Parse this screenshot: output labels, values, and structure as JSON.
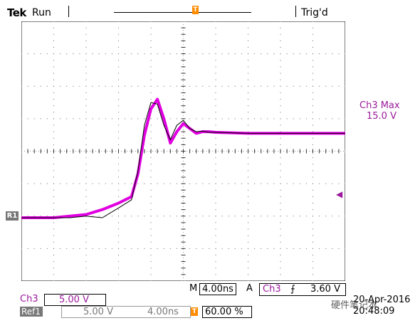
{
  "status": {
    "brand": "Tek",
    "run_state": "Run",
    "trigger_state": "Trig'd",
    "trigger_marker": "T"
  },
  "side_readout": {
    "line1": "Ch3 Max",
    "line2": "15.0 V",
    "level_arrow": "◀"
  },
  "ref_marker": "R1",
  "timebase": {
    "prefix": "M",
    "value": "4.00ns"
  },
  "trigger": {
    "prefix": "A",
    "source": "Ch3",
    "slope": "⨍",
    "level": "3.60 V"
  },
  "channel3": {
    "label": "Ch3",
    "scale": "5.00 V"
  },
  "ref1": {
    "label": "Ref1",
    "scale": "5.00 V",
    "timebase": "4.00ns"
  },
  "trigger_position": "60.00 %",
  "date": "20-Apr-2016",
  "time": "20:48:09",
  "watermark": "硬件笔记本",
  "colors": {
    "ch3": "#e000e0",
    "ref": "#000000",
    "trigger": "#ff8c00",
    "label": "#9b1a9b"
  },
  "chart_data": {
    "type": "line",
    "x_divisions": 10,
    "y_divisions": 8,
    "series": [
      {
        "x": [
          0,
          1.0,
          1.5,
          2.0,
          2.5,
          3.0,
          3.4,
          3.6,
          3.8,
          4.0,
          4.2,
          4.4,
          4.6,
          4.8,
          5.0,
          5.2,
          5.4,
          5.6,
          5.8,
          6.0,
          7.0,
          8.0,
          9.0,
          10.0
        ],
        "y": [
          1.95,
          1.95,
          2.0,
          2.05,
          2.2,
          2.4,
          2.6,
          3.3,
          4.5,
          5.3,
          5.6,
          5.0,
          4.25,
          4.6,
          4.85,
          4.7,
          4.55,
          4.6,
          4.6,
          4.58,
          4.55,
          4.55,
          4.55,
          4.55
        ]
      },
      {
        "x": [
          0,
          1.0,
          1.5,
          2.0,
          2.5,
          3.0,
          3.4,
          3.6,
          3.8,
          4.0,
          4.2,
          4.4,
          4.6,
          4.8,
          5.0,
          5.2,
          5.4,
          5.6,
          5.8,
          6.0,
          7.0,
          8.0,
          9.0,
          10.0
        ],
        "y": [
          1.95,
          1.95,
          1.95,
          2.0,
          1.95,
          2.25,
          2.5,
          3.4,
          4.8,
          5.5,
          5.45,
          4.8,
          4.35,
          4.8,
          4.95,
          4.7,
          4.6,
          4.62,
          4.58,
          4.58,
          4.55,
          4.55,
          4.55,
          4.55
        ]
      }
    ]
  }
}
